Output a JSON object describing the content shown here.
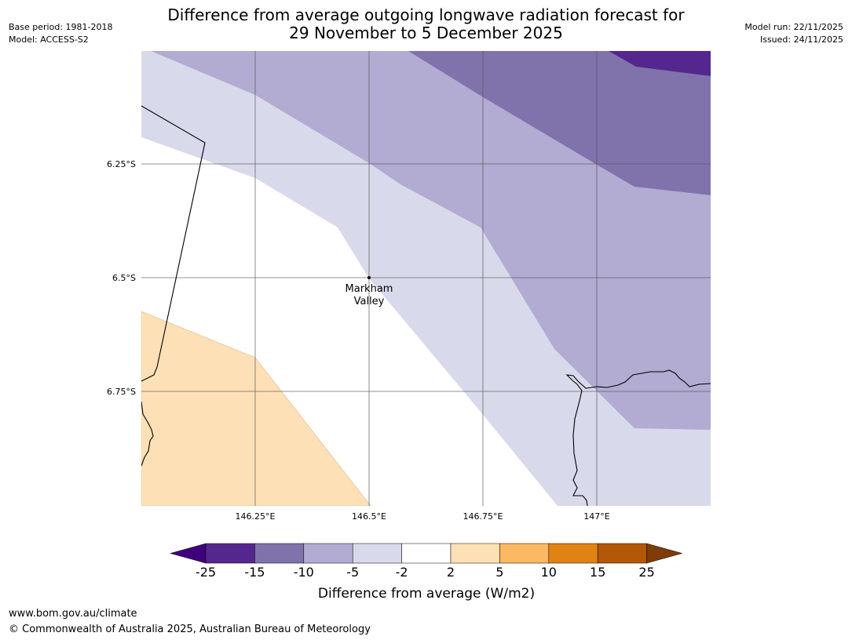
{
  "title": {
    "line1": "Difference from average outgoing longwave radiation forecast for",
    "line2": "29 November to 5 December 2025"
  },
  "meta_left": {
    "base_period": "Base period: 1981-2018",
    "model": "Model: ACCESS-S2"
  },
  "meta_right": {
    "model_run": "Model run: 22/11/2025",
    "issued": "Issued: 24/11/2025"
  },
  "map": {
    "lat_labels": [
      "6.25°S",
      "6.5°S",
      "6.75°S"
    ],
    "lon_labels": [
      "146.25°E",
      "146.5°E",
      "146.75°E",
      "147°E"
    ],
    "place_label_line1": "Markham",
    "place_label_line2": "Valley"
  },
  "legend": {
    "colors": [
      "#3f007d",
      "#54278f",
      "#8073ac",
      "#b2abd2",
      "#d8daeb",
      "#ffffff",
      "#fee0b6",
      "#fdb863",
      "#e08214",
      "#b35806",
      "#7f3b08"
    ],
    "tick_labels": [
      "-25",
      "-15",
      "-10",
      "-5",
      "-2",
      "2",
      "5",
      "10",
      "15",
      "25"
    ],
    "label": "Difference from average (W/m2)"
  },
  "footer": {
    "url": "www.bom.gov.au/climate",
    "copyright": "© Commonwealth of Australia 2025, Australian Bureau of Meteorology"
  }
}
